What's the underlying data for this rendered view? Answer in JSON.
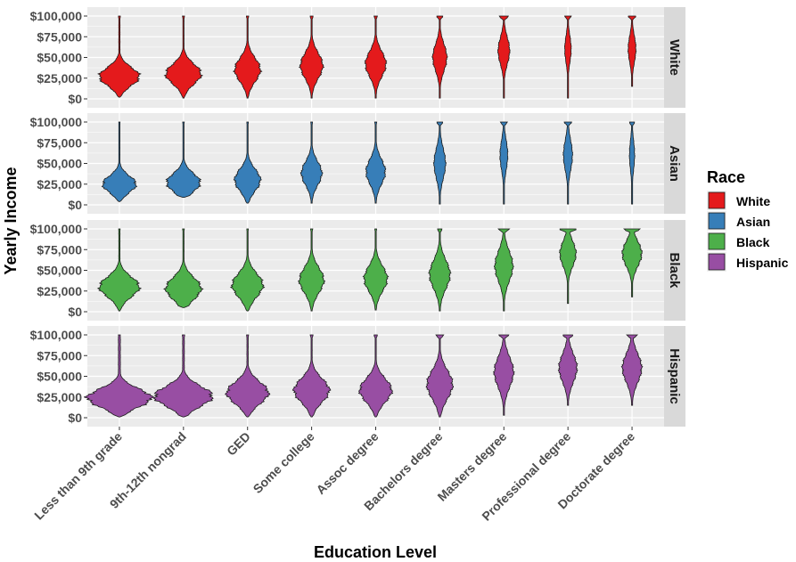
{
  "chart_data": {
    "type": "violin",
    "xlabel": "Education Level",
    "ylabel": "Yearly Income",
    "categories": [
      "Less than 9th grade",
      "9th-12th nongrad",
      "GED",
      "Some college",
      "Assoc degree",
      "Bachelors degree",
      "Masters degree",
      "Professional degree",
      "Doctorate degree"
    ],
    "y_ticks": [
      0,
      25000,
      50000,
      75000,
      100000
    ],
    "y_tick_labels": [
      "$0",
      "$25,000",
      "$50,000",
      "$75,000",
      "$100,000"
    ],
    "ylim": [
      0,
      100000
    ],
    "grid": true,
    "legend": {
      "title": "Race",
      "position": "right"
    },
    "series": [
      {
        "name": "White",
        "color": "#E41A1C",
        "violins": [
          {
            "min": 2000,
            "max": 100000,
            "peak": 27000,
            "spread": 11000,
            "top": 0.05,
            "width": 0.62
          },
          {
            "min": 1000,
            "max": 100000,
            "peak": 30000,
            "spread": 12000,
            "top": 0.06,
            "width": 0.55
          },
          {
            "min": 1000,
            "max": 100000,
            "peak": 35000,
            "spread": 14000,
            "top": 0.09,
            "width": 0.4
          },
          {
            "min": 1000,
            "max": 100000,
            "peak": 40000,
            "spread": 15000,
            "top": 0.13,
            "width": 0.35
          },
          {
            "min": 1000,
            "max": 100000,
            "peak": 42000,
            "spread": 15000,
            "top": 0.16,
            "width": 0.32
          },
          {
            "min": 1000,
            "max": 100000,
            "peak": 50000,
            "spread": 16000,
            "top": 0.42,
            "width": 0.22
          },
          {
            "min": 1000,
            "max": 100000,
            "peak": 58000,
            "spread": 16000,
            "top": 0.8,
            "width": 0.18
          },
          {
            "min": 1000,
            "max": 100000,
            "peak": 60000,
            "spread": 16000,
            "top": 1.0,
            "width": 0.1
          },
          {
            "min": 15000,
            "max": 100000,
            "peak": 60000,
            "spread": 16000,
            "top": 0.95,
            "width": 0.12
          }
        ]
      },
      {
        "name": "Asian",
        "color": "#377EB8",
        "violins": [
          {
            "min": 4000,
            "max": 100000,
            "peak": 25000,
            "spread": 10000,
            "top": 0.04,
            "width": 0.52
          },
          {
            "min": 9000,
            "max": 100000,
            "peak": 27000,
            "spread": 11000,
            "top": 0.05,
            "width": 0.52
          },
          {
            "min": 2000,
            "max": 100000,
            "peak": 30000,
            "spread": 13000,
            "top": 0.06,
            "width": 0.4
          },
          {
            "min": 2000,
            "max": 100000,
            "peak": 38000,
            "spread": 14000,
            "top": 0.09,
            "width": 0.32
          },
          {
            "min": 2000,
            "max": 100000,
            "peak": 40000,
            "spread": 15000,
            "top": 0.11,
            "width": 0.3
          },
          {
            "min": 1000,
            "max": 100000,
            "peak": 50000,
            "spread": 18000,
            "top": 0.5,
            "width": 0.18
          },
          {
            "min": 1000,
            "max": 100000,
            "peak": 60000,
            "spread": 18000,
            "top": 0.9,
            "width": 0.12
          },
          {
            "min": 1000,
            "max": 100000,
            "peak": 60000,
            "spread": 18000,
            "top": 0.8,
            "width": 0.14
          },
          {
            "min": 1000,
            "max": 100000,
            "peak": 60000,
            "spread": 18000,
            "top": 1.0,
            "width": 0.08
          }
        ]
      },
      {
        "name": "Black",
        "color": "#4DAF4A",
        "violins": [
          {
            "min": 1000,
            "max": 100000,
            "peak": 30000,
            "spread": 12000,
            "top": 0.04,
            "width": 0.62
          },
          {
            "min": 5000,
            "max": 100000,
            "peak": 28000,
            "spread": 13000,
            "top": 0.05,
            "width": 0.55
          },
          {
            "min": 1000,
            "max": 100000,
            "peak": 32000,
            "spread": 14000,
            "top": 0.05,
            "width": 0.48
          },
          {
            "min": 1000,
            "max": 100000,
            "peak": 38000,
            "spread": 15000,
            "top": 0.09,
            "width": 0.38
          },
          {
            "min": 2000,
            "max": 100000,
            "peak": 40000,
            "spread": 15000,
            "top": 0.08,
            "width": 0.36
          },
          {
            "min": 1000,
            "max": 100000,
            "peak": 45000,
            "spread": 17000,
            "top": 0.22,
            "width": 0.32
          },
          {
            "min": 1000,
            "max": 100000,
            "peak": 55000,
            "spread": 18000,
            "top": 0.6,
            "width": 0.28
          },
          {
            "min": 10000,
            "max": 100000,
            "peak": 70000,
            "spread": 15000,
            "top": 1.0,
            "width": 0.25
          },
          {
            "min": 18000,
            "max": 100000,
            "peak": 70000,
            "spread": 15000,
            "top": 0.85,
            "width": 0.3
          }
        ]
      },
      {
        "name": "Hispanic",
        "color": "#984EA3",
        "violins": [
          {
            "min": 1000,
            "max": 100000,
            "peak": 24000,
            "spread": 11000,
            "top": 0.03,
            "width": 1.0
          },
          {
            "min": 1000,
            "max": 100000,
            "peak": 26000,
            "spread": 12000,
            "top": 0.04,
            "width": 0.9
          },
          {
            "min": 1000,
            "max": 100000,
            "peak": 30000,
            "spread": 13000,
            "top": 0.05,
            "width": 0.65
          },
          {
            "min": 1000,
            "max": 100000,
            "peak": 33000,
            "spread": 14000,
            "top": 0.08,
            "width": 0.55
          },
          {
            "min": 1000,
            "max": 100000,
            "peak": 33000,
            "spread": 14000,
            "top": 0.1,
            "width": 0.5
          },
          {
            "min": 1000,
            "max": 100000,
            "peak": 40000,
            "spread": 17000,
            "top": 0.3,
            "width": 0.4
          },
          {
            "min": 3000,
            "max": 100000,
            "peak": 55000,
            "spread": 18000,
            "top": 0.5,
            "width": 0.3
          },
          {
            "min": 15000,
            "max": 100000,
            "peak": 60000,
            "spread": 17000,
            "top": 0.55,
            "width": 0.28
          },
          {
            "min": 15000,
            "max": 100000,
            "peak": 60000,
            "spread": 17000,
            "top": 0.55,
            "width": 0.3
          }
        ]
      }
    ]
  }
}
